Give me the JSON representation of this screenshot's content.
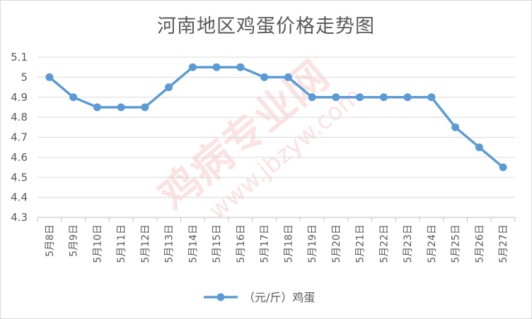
{
  "chart_data": {
    "type": "line",
    "title": "河南地区鸡蛋价格走势图",
    "categories": [
      "5月8日",
      "5月9日",
      "5月10日",
      "5月11日",
      "5月12日",
      "5月13日",
      "5月14日",
      "5月15日",
      "5月16日",
      "5月17日",
      "5月18日",
      "5月19日",
      "5月20日",
      "5月21日",
      "5月22日",
      "5月23日",
      "5月24日",
      "5月25日",
      "5月26日",
      "5月27日"
    ],
    "series": [
      {
        "name": "（元/斤）鸡蛋",
        "values": [
          5.0,
          4.9,
          4.85,
          4.85,
          4.85,
          4.95,
          5.05,
          5.05,
          5.05,
          5.0,
          5.0,
          4.9,
          4.9,
          4.9,
          4.9,
          4.9,
          4.9,
          4.75,
          4.65,
          4.55
        ],
        "color": "#5b9bd5"
      }
    ],
    "ylim": [
      4.3,
      5.1
    ],
    "yticks": [
      "5.1",
      "5",
      "4.9",
      "4.8",
      "4.7",
      "4.6",
      "4.5",
      "4.4",
      "4.3"
    ],
    "xlabel": "",
    "ylabel": "",
    "grid": true,
    "legend": "bottom"
  },
  "watermark": {
    "text": "鸡病专业网",
    "url": "www.jbzyw.com"
  }
}
